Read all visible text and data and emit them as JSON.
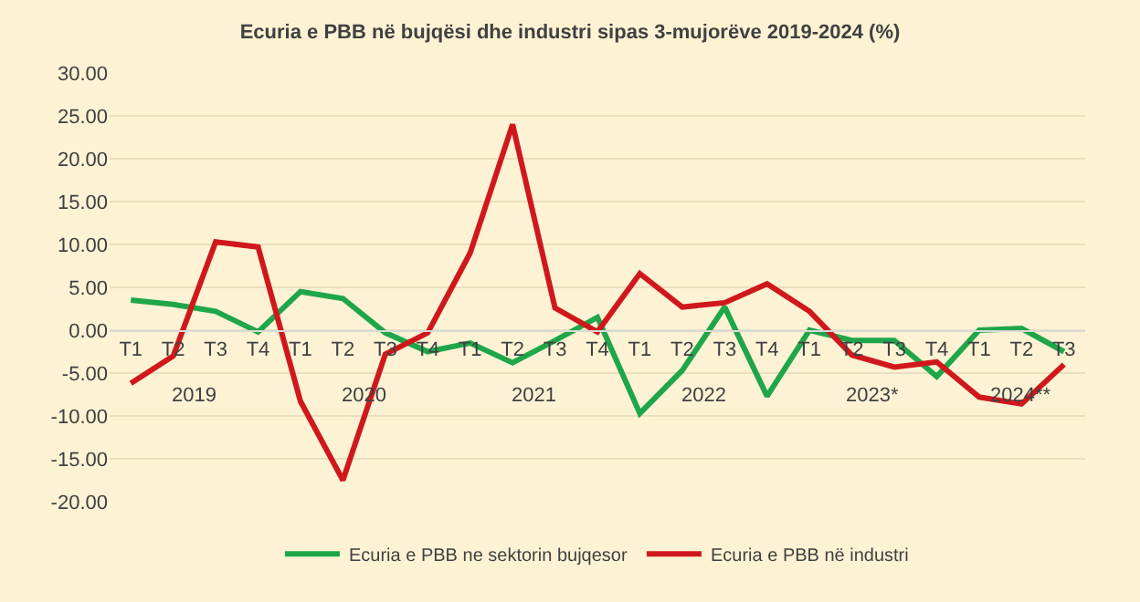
{
  "chart_data": {
    "type": "line",
    "title": "Ecuria e PBB në bujqësi dhe industri sipas 3-mujorëve 2019-2024 (%)",
    "categories": [
      "T1",
      "T2",
      "T3",
      "T4",
      "T1",
      "T2",
      "T3",
      "T4",
      "T1",
      "T2",
      "T3",
      "T4",
      "T1",
      "T2",
      "T3",
      "T4",
      "T1",
      "T2",
      "T3",
      "T4",
      "T1",
      "T2",
      "T3"
    ],
    "annotations": [
      "2019",
      "2020",
      "2021",
      "2022",
      "2023*",
      "2024**"
    ],
    "series": [
      {
        "name": "Ecuria e PBB ne sektorin bujqesor",
        "color": "#1fa64a",
        "values": [
          3.5,
          3.0,
          2.2,
          -0.2,
          4.5,
          3.7,
          -0.3,
          -2.5,
          -1.5,
          -3.8,
          -1.2,
          1.5,
          -9.7,
          -4.7,
          2.7,
          -7.7,
          0.0,
          -1.2,
          -1.2,
          -5.4,
          0.0,
          0.2,
          -2.5
        ]
      },
      {
        "name": "Ecuria e PBB në industri",
        "color": "#d0181c",
        "values": [
          -6.2,
          -3.0,
          10.3,
          9.7,
          -8.3,
          -17.5,
          -2.8,
          -0.3,
          9.0,
          24.0,
          2.6,
          -0.2,
          6.6,
          2.7,
          3.2,
          5.4,
          2.2,
          -2.9,
          -4.3,
          -3.7,
          -7.8,
          -8.6,
          -4.0
        ]
      }
    ],
    "ylim": [
      -20,
      30
    ],
    "yticks": [
      {
        "value": -20,
        "label": "-20.00"
      },
      {
        "value": -15,
        "label": "-15.00"
      },
      {
        "value": -10,
        "label": "-10.00"
      },
      {
        "value": -5,
        "label": "-5.00"
      },
      {
        "value": 0,
        "label": "0.00"
      },
      {
        "value": 5,
        "label": "5.00"
      },
      {
        "value": 10,
        "label": "10.00"
      },
      {
        "value": 15,
        "label": "15.00"
      },
      {
        "value": 20,
        "label": "20.00"
      },
      {
        "value": 25,
        "label": "25.00"
      },
      {
        "value": 30,
        "label": "30.00"
      }
    ],
    "grid": "y",
    "legend": "bottom",
    "marker": "none",
    "line_style": "solid"
  }
}
